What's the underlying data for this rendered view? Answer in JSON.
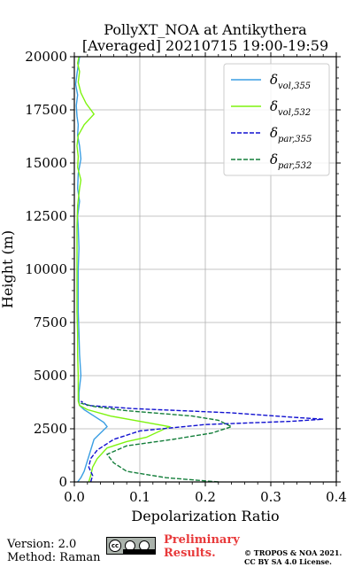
{
  "chart_data": {
    "type": "line",
    "title_line1": "PollyXT_NOA at Antikythera",
    "title_line2": "[Averaged] 20210715 19:00-19:59",
    "xlabel": "Depolarization Ratio",
    "ylabel": "Height (m)",
    "xlim": [
      0,
      0.4
    ],
    "ylim": [
      0,
      20000
    ],
    "x_ticks": [
      0.0,
      0.1,
      0.2,
      0.3,
      0.4
    ],
    "x_tick_labels": [
      "0.0",
      "0.1",
      "0.2",
      "0.3",
      "0.4"
    ],
    "y_ticks": [
      0,
      2500,
      5000,
      7500,
      10000,
      12500,
      15000,
      17500,
      20000
    ],
    "y_tick_labels": [
      "0",
      "2500",
      "5000",
      "7500",
      "10000",
      "12500",
      "15000",
      "17500",
      "20000"
    ],
    "grid": true,
    "legend_position": "top-right",
    "series": [
      {
        "name": "δ_vol,355",
        "name_main": "δ",
        "name_sub": "vol,355",
        "color": "#3a9ee3",
        "dash": "solid",
        "points": [
          [
            0.005,
            0
          ],
          [
            0.01,
            200
          ],
          [
            0.015,
            500
          ],
          [
            0.02,
            1000
          ],
          [
            0.025,
            1500
          ],
          [
            0.03,
            2000
          ],
          [
            0.04,
            2300
          ],
          [
            0.05,
            2600
          ],
          [
            0.045,
            2800
          ],
          [
            0.03,
            3100
          ],
          [
            0.015,
            3400
          ],
          [
            0.008,
            3600
          ],
          [
            0.007,
            3800
          ],
          [
            0.007,
            4200
          ],
          [
            0.01,
            5000
          ],
          [
            0.008,
            6000
          ],
          [
            0.007,
            7000
          ],
          [
            0.006,
            8000
          ],
          [
            0.006,
            9000
          ],
          [
            0.006,
            10000
          ],
          [
            0.007,
            11000
          ],
          [
            0.006,
            12000
          ],
          [
            0.005,
            12500
          ],
          [
            0.008,
            13200
          ],
          [
            0.005,
            13800
          ],
          [
            0.006,
            14500
          ],
          [
            0.01,
            15200
          ],
          [
            0.008,
            15800
          ],
          [
            0.005,
            16300
          ],
          [
            0.006,
            16800
          ],
          [
            0.004,
            17200
          ],
          [
            0.003,
            17700
          ],
          [
            0.005,
            18200
          ],
          [
            0.002,
            18700
          ],
          [
            0.004,
            19200
          ],
          [
            0.006,
            19600
          ],
          [
            0.008,
            20000
          ]
        ]
      },
      {
        "name": "δ_vol,532",
        "name_main": "δ",
        "name_sub": "vol,532",
        "color": "#7ef40f",
        "dash": "solid",
        "points": [
          [
            0.022,
            0
          ],
          [
            0.025,
            300
          ],
          [
            0.028,
            700
          ],
          [
            0.035,
            1100
          ],
          [
            0.05,
            1600
          ],
          [
            0.08,
            1900
          ],
          [
            0.11,
            2100
          ],
          [
            0.145,
            2600
          ],
          [
            0.1,
            2850
          ],
          [
            0.055,
            3100
          ],
          [
            0.02,
            3400
          ],
          [
            0.008,
            3600
          ],
          [
            0.006,
            3800
          ],
          [
            0.006,
            5000
          ],
          [
            0.005,
            6000
          ],
          [
            0.005,
            7000
          ],
          [
            0.004,
            8000
          ],
          [
            0.004,
            9000
          ],
          [
            0.004,
            10000
          ],
          [
            0.004,
            11000
          ],
          [
            0.004,
            12000
          ],
          [
            0.005,
            13000
          ],
          [
            0.008,
            13800
          ],
          [
            0.01,
            14200
          ],
          [
            0.005,
            14800
          ],
          [
            0.006,
            15300
          ],
          [
            0.004,
            15800
          ],
          [
            0.006,
            16300
          ],
          [
            0.015,
            16800
          ],
          [
            0.03,
            17300
          ],
          [
            0.018,
            17800
          ],
          [
            0.01,
            18300
          ],
          [
            0.006,
            18800
          ],
          [
            0.008,
            19300
          ],
          [
            0.005,
            19700
          ],
          [
            0.007,
            20000
          ]
        ]
      },
      {
        "name": "δ_par,355",
        "name_main": "δ",
        "name_sub": "par,355",
        "color": "#1010d0",
        "dash": "dashed",
        "points": [
          [
            0.025,
            0
          ],
          [
            0.028,
            300
          ],
          [
            0.022,
            700
          ],
          [
            0.025,
            1100
          ],
          [
            0.035,
            1500
          ],
          [
            0.06,
            2000
          ],
          [
            0.1,
            2400
          ],
          [
            0.2,
            2700
          ],
          [
            0.33,
            2850
          ],
          [
            0.38,
            2950
          ],
          [
            0.33,
            3050
          ],
          [
            0.24,
            3250
          ],
          [
            0.09,
            3450
          ],
          [
            0.02,
            3600
          ],
          [
            0.01,
            3800
          ]
        ]
      },
      {
        "name": "δ_par,532",
        "name_main": "δ",
        "name_sub": "par,532",
        "color": "#137e3a",
        "dash": "dashed",
        "points": [
          [
            0.22,
            0
          ],
          [
            0.14,
            200
          ],
          [
            0.08,
            500
          ],
          [
            0.06,
            900
          ],
          [
            0.05,
            1300
          ],
          [
            0.08,
            1700
          ],
          [
            0.15,
            2000
          ],
          [
            0.21,
            2300
          ],
          [
            0.24,
            2600
          ],
          [
            0.22,
            2900
          ],
          [
            0.18,
            3100
          ],
          [
            0.08,
            3350
          ],
          [
            0.03,
            3550
          ],
          [
            0.01,
            3700
          ]
        ]
      }
    ]
  },
  "footer": {
    "version": "Version: 2.0",
    "method": "Method: Raman",
    "preliminary_line1": "Preliminary",
    "preliminary_line2": "Results.",
    "copyright_line1": "© TROPOS & NOA 2021.",
    "copyright_line2": "CC BY SA 4.0 License.",
    "license_badge": "cc-by-sa-badge",
    "license_badge_text": "cc"
  }
}
